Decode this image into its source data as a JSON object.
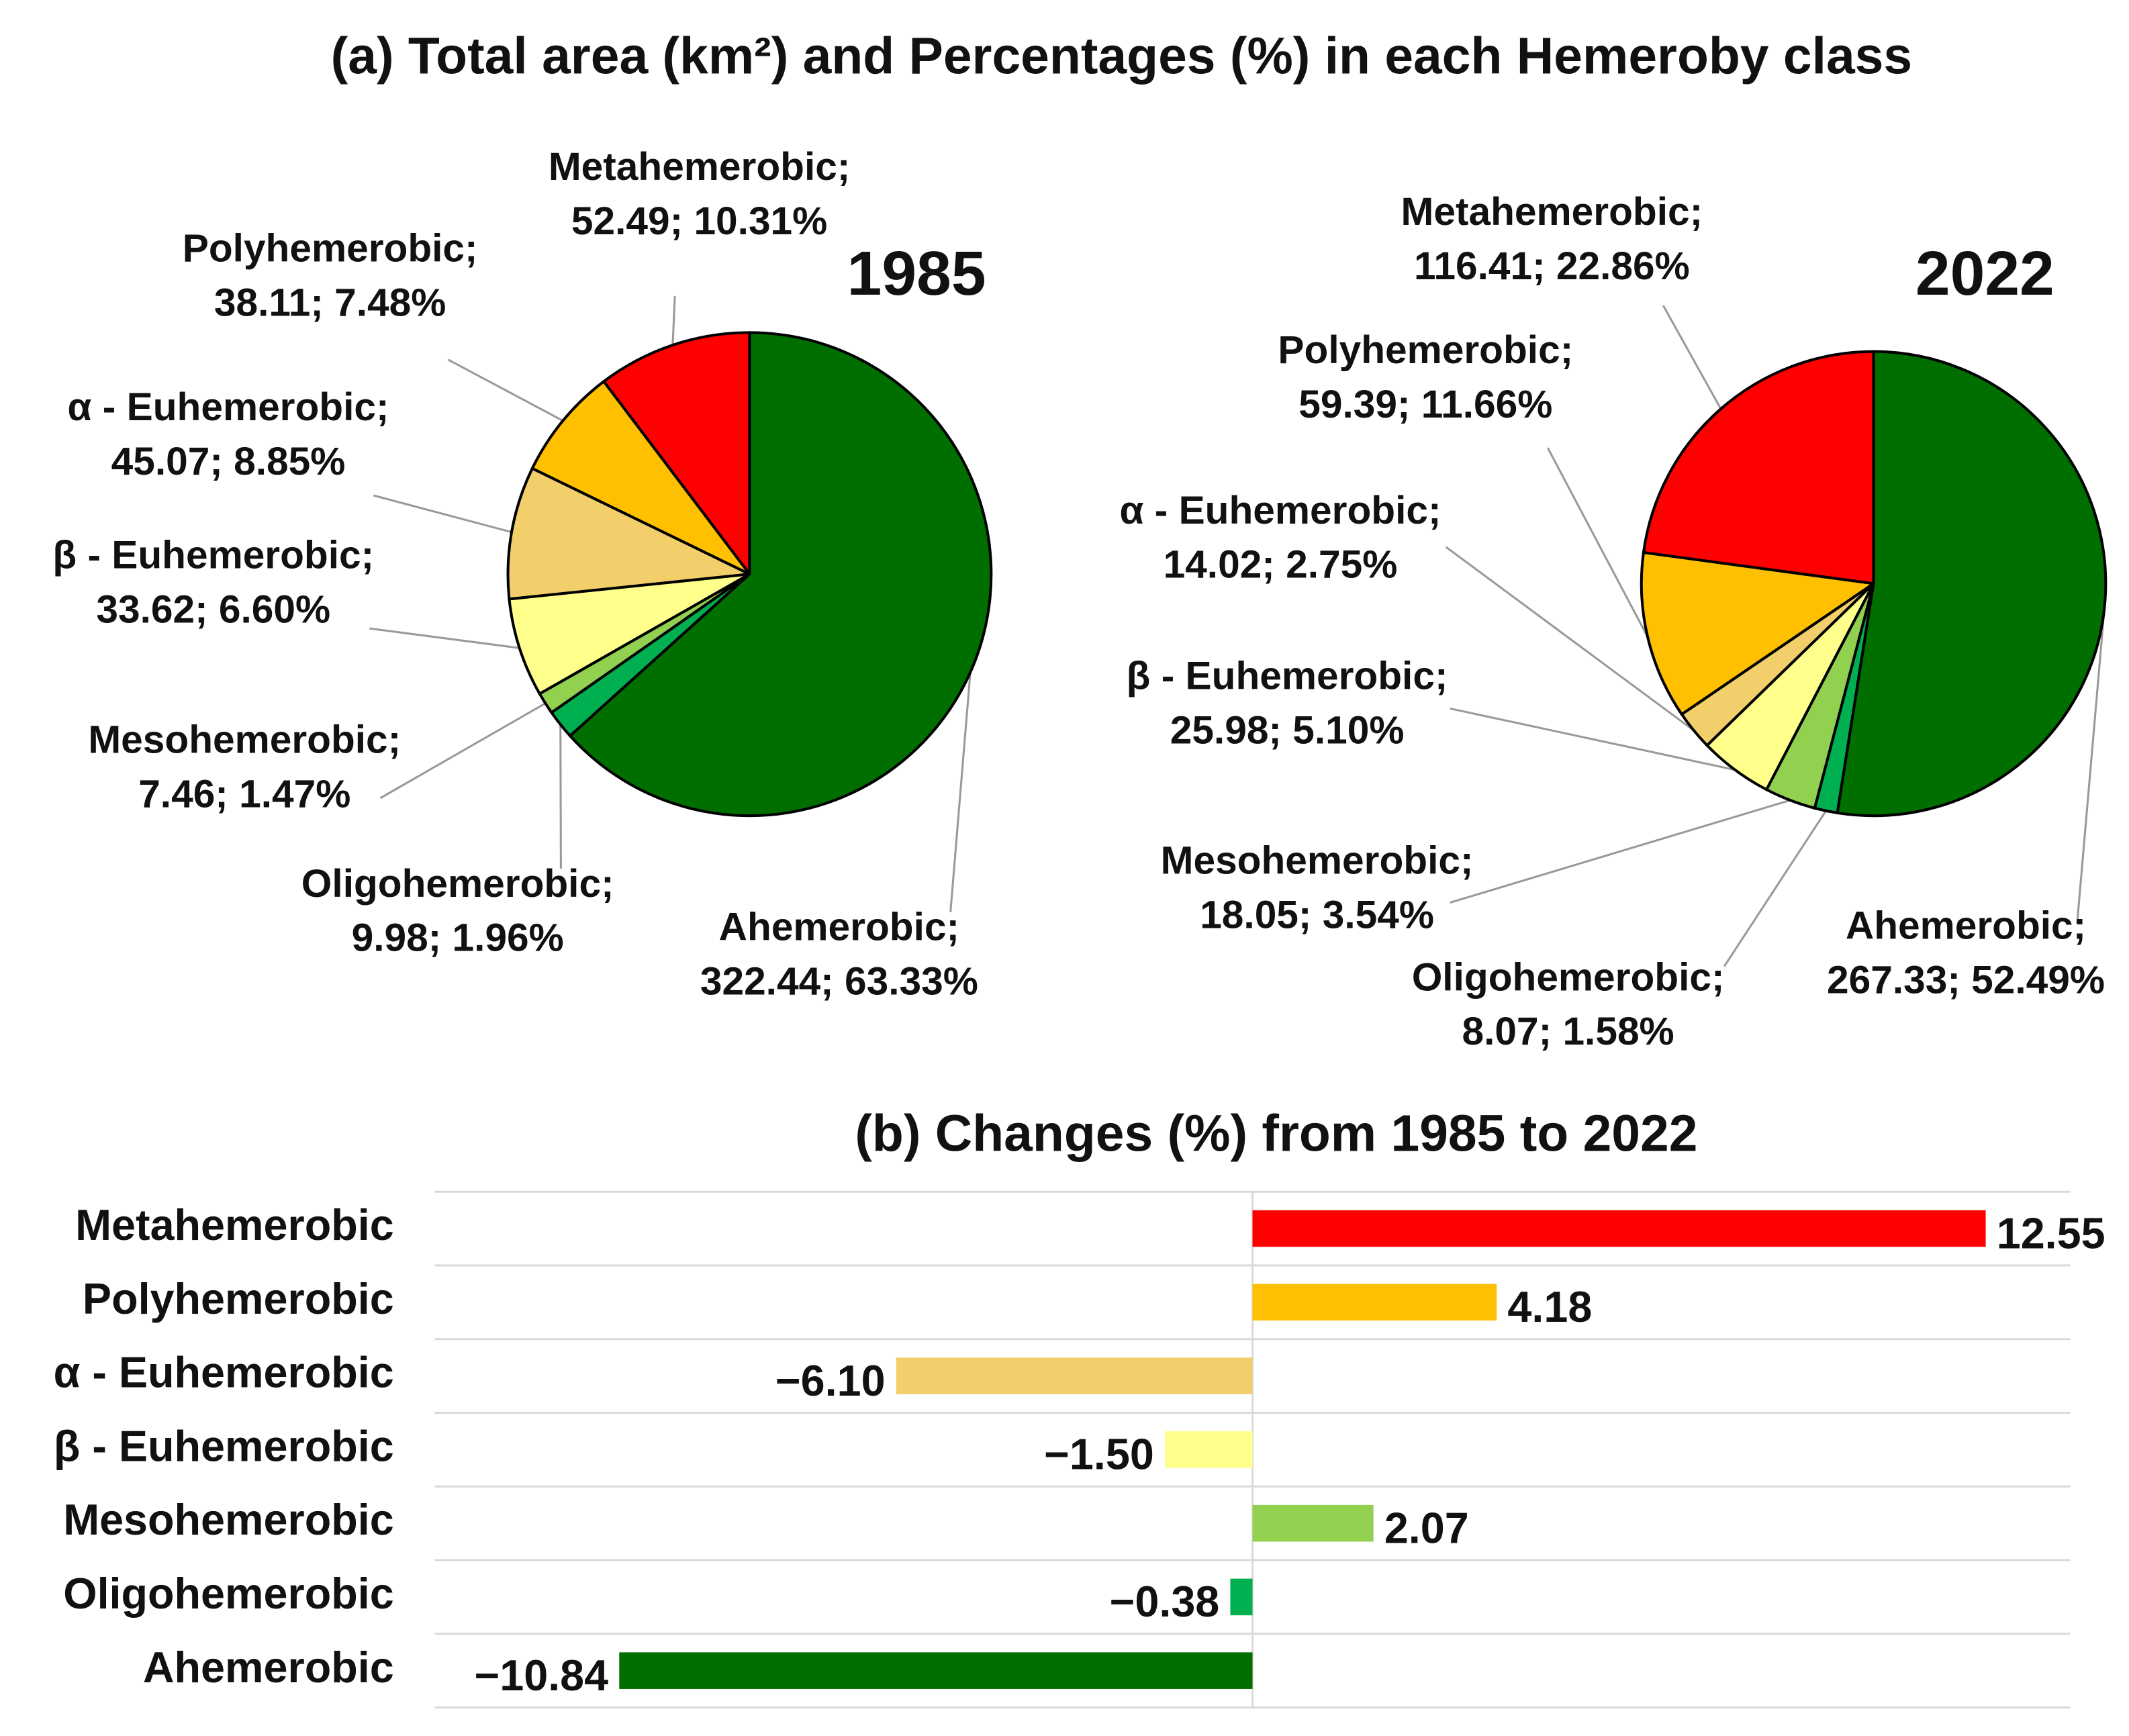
{
  "title": "(a)  Total area (km²) and Percentages (%) in each Hemeroby class",
  "chart_data": [
    {
      "type": "pie",
      "title": "1985",
      "categories": [
        "Metahemerobic;",
        "Polyhemerobic;",
        "α - Euhemerobic;",
        "β - Euhemerobic;",
        "Mesohemerobic;",
        "Oligohemerobic;",
        "Ahemerobic;"
      ],
      "values": [
        52.49,
        38.11,
        45.07,
        33.62,
        7.46,
        9.98,
        322.44
      ],
      "percentages": [
        10.31,
        7.48,
        8.85,
        6.6,
        1.47,
        1.96,
        63.33
      ],
      "value_labels": [
        "52.49; 10.31%",
        "38.11; 7.48%",
        "45.07; 8.85%",
        "33.62; 6.60%",
        "7.46; 1.47%",
        "9.98; 1.96%",
        "322.44; 63.33%"
      ],
      "colors": [
        "#ff0000",
        "#ffc000",
        "#f2cf6a",
        "#ffff8c",
        "#92d050",
        "#00b050",
        "#006f00"
      ]
    },
    {
      "type": "pie",
      "title": "2022",
      "categories": [
        "Metahemerobic;",
        "Polyhemerobic;",
        "α - Euhemerobic;",
        "β - Euhemerobic;",
        "Mesohemerobic;",
        "Oligohemerobic;",
        "Ahemerobic;"
      ],
      "values": [
        116.41,
        59.39,
        14.02,
        25.98,
        18.05,
        8.07,
        267.33
      ],
      "percentages": [
        22.86,
        11.66,
        2.75,
        5.1,
        3.54,
        1.58,
        52.49
      ],
      "value_labels": [
        "116.41; 22.86%",
        "59.39; 11.66%",
        "14.02; 2.75%",
        "25.98; 5.10%",
        "18.05; 3.54%",
        "8.07; 1.58%",
        "267.33; 52.49%"
      ],
      "colors": [
        "#ff0000",
        "#ffc000",
        "#f2cf6a",
        "#ffff8c",
        "#92d050",
        "#00b050",
        "#006f00"
      ]
    },
    {
      "type": "hbar",
      "title": "(b)  Changes (%) from 1985 to 2022",
      "categories": [
        "Metahemerobic",
        "Polyhemerobic",
        "α - Euhemerobic",
        "β - Euhemerobic",
        "Mesohemerobic",
        "Oligohemerobic",
        "Ahemerobic"
      ],
      "values": [
        12.55,
        4.18,
        -6.1,
        -1.5,
        2.07,
        -0.38,
        -10.84
      ],
      "value_labels": [
        "12.55",
        "4.18",
        "−6.10",
        "−1.50",
        "2.07",
        "−0.38",
        "−10.84"
      ],
      "colors": [
        "#ff0000",
        "#ffc000",
        "#f2cf6a",
        "#ffff8c",
        "#92d050",
        "#00b050",
        "#006f00"
      ],
      "xlim": [
        -14,
        14
      ],
      "grid": true
    }
  ]
}
